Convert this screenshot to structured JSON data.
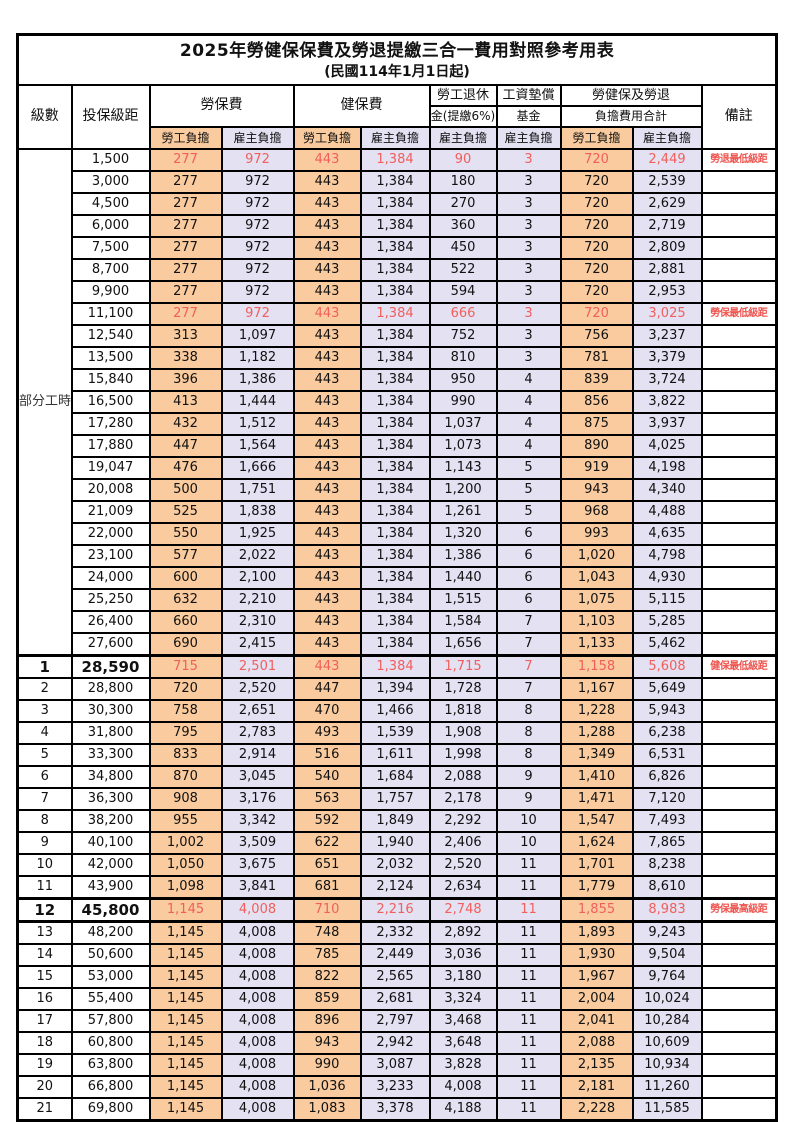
{
  "title": "2025年勞健保保費及勞退提繳三合一費用對照參考用表",
  "subtitle": "(民國114年1月1日起)",
  "colors": {
    "employee_bg": "#f9cb9e",
    "employer_bg": "#e3e1f2",
    "highlight_red": "#f15f5c",
    "grid": "#000000"
  },
  "header": {
    "level": "級數",
    "salary": "投保級距",
    "labor_insurance": "勞保費",
    "health_insurance": "健保費",
    "pension_line1": "勞工退休",
    "pension_line2": "金(提繳6%)",
    "wage_fund_line1": "工資墊償",
    "wage_fund_line2": "基金",
    "total_line1": "勞健保及勞退",
    "total_line2": "負擔費用合計",
    "remark": "備註",
    "employee": "勞工負擔",
    "employer": "雇主負擔"
  },
  "part_time": {
    "label": "部分工時",
    "row_span": 23
  },
  "rows": [
    {
      "level": "",
      "salary": "1,500",
      "values": [
        "277",
        "972",
        "443",
        "1,384",
        "90",
        "3",
        "720",
        "2,449"
      ],
      "remark": "勞退最低級距",
      "red": true,
      "big": false,
      "thick_top": false,
      "thick_bottom": false
    },
    {
      "level": "",
      "salary": "3,000",
      "values": [
        "277",
        "972",
        "443",
        "1,384",
        "180",
        "3",
        "720",
        "2,539"
      ],
      "remark": "",
      "red": false,
      "big": false,
      "thick_top": false,
      "thick_bottom": false
    },
    {
      "level": "",
      "salary": "4,500",
      "values": [
        "277",
        "972",
        "443",
        "1,384",
        "270",
        "3",
        "720",
        "2,629"
      ],
      "remark": "",
      "red": false,
      "big": false,
      "thick_top": false,
      "thick_bottom": false
    },
    {
      "level": "",
      "salary": "6,000",
      "values": [
        "277",
        "972",
        "443",
        "1,384",
        "360",
        "3",
        "720",
        "2,719"
      ],
      "remark": "",
      "red": false,
      "big": false,
      "thick_top": false,
      "thick_bottom": false
    },
    {
      "level": "",
      "salary": "7,500",
      "values": [
        "277",
        "972",
        "443",
        "1,384",
        "450",
        "3",
        "720",
        "2,809"
      ],
      "remark": "",
      "red": false,
      "big": false,
      "thick_top": false,
      "thick_bottom": false
    },
    {
      "level": "",
      "salary": "8,700",
      "values": [
        "277",
        "972",
        "443",
        "1,384",
        "522",
        "3",
        "720",
        "2,881"
      ],
      "remark": "",
      "red": false,
      "big": false,
      "thick_top": false,
      "thick_bottom": false
    },
    {
      "level": "",
      "salary": "9,900",
      "values": [
        "277",
        "972",
        "443",
        "1,384",
        "594",
        "3",
        "720",
        "2,953"
      ],
      "remark": "",
      "red": false,
      "big": false,
      "thick_top": false,
      "thick_bottom": false
    },
    {
      "level": "",
      "salary": "11,100",
      "values": [
        "277",
        "972",
        "443",
        "1,384",
        "666",
        "3",
        "720",
        "3,025"
      ],
      "remark": "勞保最低級距",
      "red": true,
      "big": false,
      "thick_top": false,
      "thick_bottom": false
    },
    {
      "level": "",
      "salary": "12,540",
      "values": [
        "313",
        "1,097",
        "443",
        "1,384",
        "752",
        "3",
        "756",
        "3,237"
      ],
      "remark": "",
      "red": false,
      "big": false,
      "thick_top": false,
      "thick_bottom": false
    },
    {
      "level": "",
      "salary": "13,500",
      "values": [
        "338",
        "1,182",
        "443",
        "1,384",
        "810",
        "3",
        "781",
        "3,379"
      ],
      "remark": "",
      "red": false,
      "big": false,
      "thick_top": false,
      "thick_bottom": false
    },
    {
      "level": "",
      "salary": "15,840",
      "values": [
        "396",
        "1,386",
        "443",
        "1,384",
        "950",
        "4",
        "839",
        "3,724"
      ],
      "remark": "",
      "red": false,
      "big": false,
      "thick_top": false,
      "thick_bottom": false
    },
    {
      "level": "",
      "salary": "16,500",
      "values": [
        "413",
        "1,444",
        "443",
        "1,384",
        "990",
        "4",
        "856",
        "3,822"
      ],
      "remark": "",
      "red": false,
      "big": false,
      "thick_top": false,
      "thick_bottom": false
    },
    {
      "level": "",
      "salary": "17,280",
      "values": [
        "432",
        "1,512",
        "443",
        "1,384",
        "1,037",
        "4",
        "875",
        "3,937"
      ],
      "remark": "",
      "red": false,
      "big": false,
      "thick_top": false,
      "thick_bottom": false
    },
    {
      "level": "",
      "salary": "17,880",
      "values": [
        "447",
        "1,564",
        "443",
        "1,384",
        "1,073",
        "4",
        "890",
        "4,025"
      ],
      "remark": "",
      "red": false,
      "big": false,
      "thick_top": false,
      "thick_bottom": false
    },
    {
      "level": "",
      "salary": "19,047",
      "values": [
        "476",
        "1,666",
        "443",
        "1,384",
        "1,143",
        "5",
        "919",
        "4,198"
      ],
      "remark": "",
      "red": false,
      "big": false,
      "thick_top": false,
      "thick_bottom": false
    },
    {
      "level": "",
      "salary": "20,008",
      "values": [
        "500",
        "1,751",
        "443",
        "1,384",
        "1,200",
        "5",
        "943",
        "4,340"
      ],
      "remark": "",
      "red": false,
      "big": false,
      "thick_top": false,
      "thick_bottom": false
    },
    {
      "level": "",
      "salary": "21,009",
      "values": [
        "525",
        "1,838",
        "443",
        "1,384",
        "1,261",
        "5",
        "968",
        "4,488"
      ],
      "remark": "",
      "red": false,
      "big": false,
      "thick_top": false,
      "thick_bottom": false
    },
    {
      "level": "",
      "salary": "22,000",
      "values": [
        "550",
        "1,925",
        "443",
        "1,384",
        "1,320",
        "6",
        "993",
        "4,635"
      ],
      "remark": "",
      "red": false,
      "big": false,
      "thick_top": false,
      "thick_bottom": false
    },
    {
      "level": "",
      "salary": "23,100",
      "values": [
        "577",
        "2,022",
        "443",
        "1,384",
        "1,386",
        "6",
        "1,020",
        "4,798"
      ],
      "remark": "",
      "red": false,
      "big": false,
      "thick_top": false,
      "thick_bottom": false
    },
    {
      "level": "",
      "salary": "24,000",
      "values": [
        "600",
        "2,100",
        "443",
        "1,384",
        "1,440",
        "6",
        "1,043",
        "4,930"
      ],
      "remark": "",
      "red": false,
      "big": false,
      "thick_top": false,
      "thick_bottom": false
    },
    {
      "level": "",
      "salary": "25,250",
      "values": [
        "632",
        "2,210",
        "443",
        "1,384",
        "1,515",
        "6",
        "1,075",
        "5,115"
      ],
      "remark": "",
      "red": false,
      "big": false,
      "thick_top": false,
      "thick_bottom": false
    },
    {
      "level": "",
      "salary": "26,400",
      "values": [
        "660",
        "2,310",
        "443",
        "1,384",
        "1,584",
        "7",
        "1,103",
        "5,285"
      ],
      "remark": "",
      "red": false,
      "big": false,
      "thick_top": false,
      "thick_bottom": false
    },
    {
      "level": "",
      "salary": "27,600",
      "values": [
        "690",
        "2,415",
        "443",
        "1,384",
        "1,656",
        "7",
        "1,133",
        "5,462"
      ],
      "remark": "",
      "red": false,
      "big": false,
      "thick_top": false,
      "thick_bottom": false
    },
    {
      "level": "1",
      "salary": "28,590",
      "values": [
        "715",
        "2,501",
        "443",
        "1,384",
        "1,715",
        "7",
        "1,158",
        "5,608"
      ],
      "remark": "健保最低級距",
      "red": true,
      "big": true,
      "thick_top": true,
      "thick_bottom": false
    },
    {
      "level": "2",
      "salary": "28,800",
      "values": [
        "720",
        "2,520",
        "447",
        "1,394",
        "1,728",
        "7",
        "1,167",
        "5,649"
      ],
      "remark": "",
      "red": false,
      "big": false,
      "thick_top": false,
      "thick_bottom": false
    },
    {
      "level": "3",
      "salary": "30,300",
      "values": [
        "758",
        "2,651",
        "470",
        "1,466",
        "1,818",
        "8",
        "1,228",
        "5,943"
      ],
      "remark": "",
      "red": false,
      "big": false,
      "thick_top": false,
      "thick_bottom": false
    },
    {
      "level": "4",
      "salary": "31,800",
      "values": [
        "795",
        "2,783",
        "493",
        "1,539",
        "1,908",
        "8",
        "1,288",
        "6,238"
      ],
      "remark": "",
      "red": false,
      "big": false,
      "thick_top": false,
      "thick_bottom": false
    },
    {
      "level": "5",
      "salary": "33,300",
      "values": [
        "833",
        "2,914",
        "516",
        "1,611",
        "1,998",
        "8",
        "1,349",
        "6,531"
      ],
      "remark": "",
      "red": false,
      "big": false,
      "thick_top": false,
      "thick_bottom": false
    },
    {
      "level": "6",
      "salary": "34,800",
      "values": [
        "870",
        "3,045",
        "540",
        "1,684",
        "2,088",
        "9",
        "1,410",
        "6,826"
      ],
      "remark": "",
      "red": false,
      "big": false,
      "thick_top": false,
      "thick_bottom": false
    },
    {
      "level": "7",
      "salary": "36,300",
      "values": [
        "908",
        "3,176",
        "563",
        "1,757",
        "2,178",
        "9",
        "1,471",
        "7,120"
      ],
      "remark": "",
      "red": false,
      "big": false,
      "thick_top": false,
      "thick_bottom": false
    },
    {
      "level": "8",
      "salary": "38,200",
      "values": [
        "955",
        "3,342",
        "592",
        "1,849",
        "2,292",
        "10",
        "1,547",
        "7,493"
      ],
      "remark": "",
      "red": false,
      "big": false,
      "thick_top": false,
      "thick_bottom": false
    },
    {
      "level": "9",
      "salary": "40,100",
      "values": [
        "1,002",
        "3,509",
        "622",
        "1,940",
        "2,406",
        "10",
        "1,624",
        "7,865"
      ],
      "remark": "",
      "red": false,
      "big": false,
      "thick_top": false,
      "thick_bottom": false
    },
    {
      "level": "10",
      "salary": "42,000",
      "values": [
        "1,050",
        "3,675",
        "651",
        "2,032",
        "2,520",
        "11",
        "1,701",
        "8,238"
      ],
      "remark": "",
      "red": false,
      "big": false,
      "thick_top": false,
      "thick_bottom": false
    },
    {
      "level": "11",
      "salary": "43,900",
      "values": [
        "1,098",
        "3,841",
        "681",
        "2,124",
        "2,634",
        "11",
        "1,779",
        "8,610"
      ],
      "remark": "",
      "red": false,
      "big": false,
      "thick_top": false,
      "thick_bottom": false
    },
    {
      "level": "12",
      "salary": "45,800",
      "values": [
        "1,145",
        "4,008",
        "710",
        "2,216",
        "2,748",
        "11",
        "1,855",
        "8,983"
      ],
      "remark": "勞保最高級距",
      "red": true,
      "big": true,
      "thick_top": true,
      "thick_bottom": true
    },
    {
      "level": "13",
      "salary": "48,200",
      "values": [
        "1,145",
        "4,008",
        "748",
        "2,332",
        "2,892",
        "11",
        "1,893",
        "9,243"
      ],
      "remark": "",
      "red": false,
      "big": false,
      "thick_top": false,
      "thick_bottom": false
    },
    {
      "level": "14",
      "salary": "50,600",
      "values": [
        "1,145",
        "4,008",
        "785",
        "2,449",
        "3,036",
        "11",
        "1,930",
        "9,504"
      ],
      "remark": "",
      "red": false,
      "big": false,
      "thick_top": false,
      "thick_bottom": false
    },
    {
      "level": "15",
      "salary": "53,000",
      "values": [
        "1,145",
        "4,008",
        "822",
        "2,565",
        "3,180",
        "11",
        "1,967",
        "9,764"
      ],
      "remark": "",
      "red": false,
      "big": false,
      "thick_top": false,
      "thick_bottom": false
    },
    {
      "level": "16",
      "salary": "55,400",
      "values": [
        "1,145",
        "4,008",
        "859",
        "2,681",
        "3,324",
        "11",
        "2,004",
        "10,024"
      ],
      "remark": "",
      "red": false,
      "big": false,
      "thick_top": false,
      "thick_bottom": false
    },
    {
      "level": "17",
      "salary": "57,800",
      "values": [
        "1,145",
        "4,008",
        "896",
        "2,797",
        "3,468",
        "11",
        "2,041",
        "10,284"
      ],
      "remark": "",
      "red": false,
      "big": false,
      "thick_top": false,
      "thick_bottom": false
    },
    {
      "level": "18",
      "salary": "60,800",
      "values": [
        "1,145",
        "4,008",
        "943",
        "2,942",
        "3,648",
        "11",
        "2,088",
        "10,609"
      ],
      "remark": "",
      "red": false,
      "big": false,
      "thick_top": false,
      "thick_bottom": false
    },
    {
      "level": "19",
      "salary": "63,800",
      "values": [
        "1,145",
        "4,008",
        "990",
        "3,087",
        "3,828",
        "11",
        "2,135",
        "10,934"
      ],
      "remark": "",
      "red": false,
      "big": false,
      "thick_top": false,
      "thick_bottom": false
    },
    {
      "level": "20",
      "salary": "66,800",
      "values": [
        "1,145",
        "4,008",
        "1,036",
        "3,233",
        "4,008",
        "11",
        "2,181",
        "11,260"
      ],
      "remark": "",
      "red": false,
      "big": false,
      "thick_top": false,
      "thick_bottom": false
    },
    {
      "level": "21",
      "salary": "69,800",
      "values": [
        "1,145",
        "4,008",
        "1,083",
        "3,378",
        "4,188",
        "11",
        "2,228",
        "11,585"
      ],
      "remark": "",
      "red": false,
      "big": false,
      "thick_top": false,
      "thick_bottom": false
    }
  ]
}
